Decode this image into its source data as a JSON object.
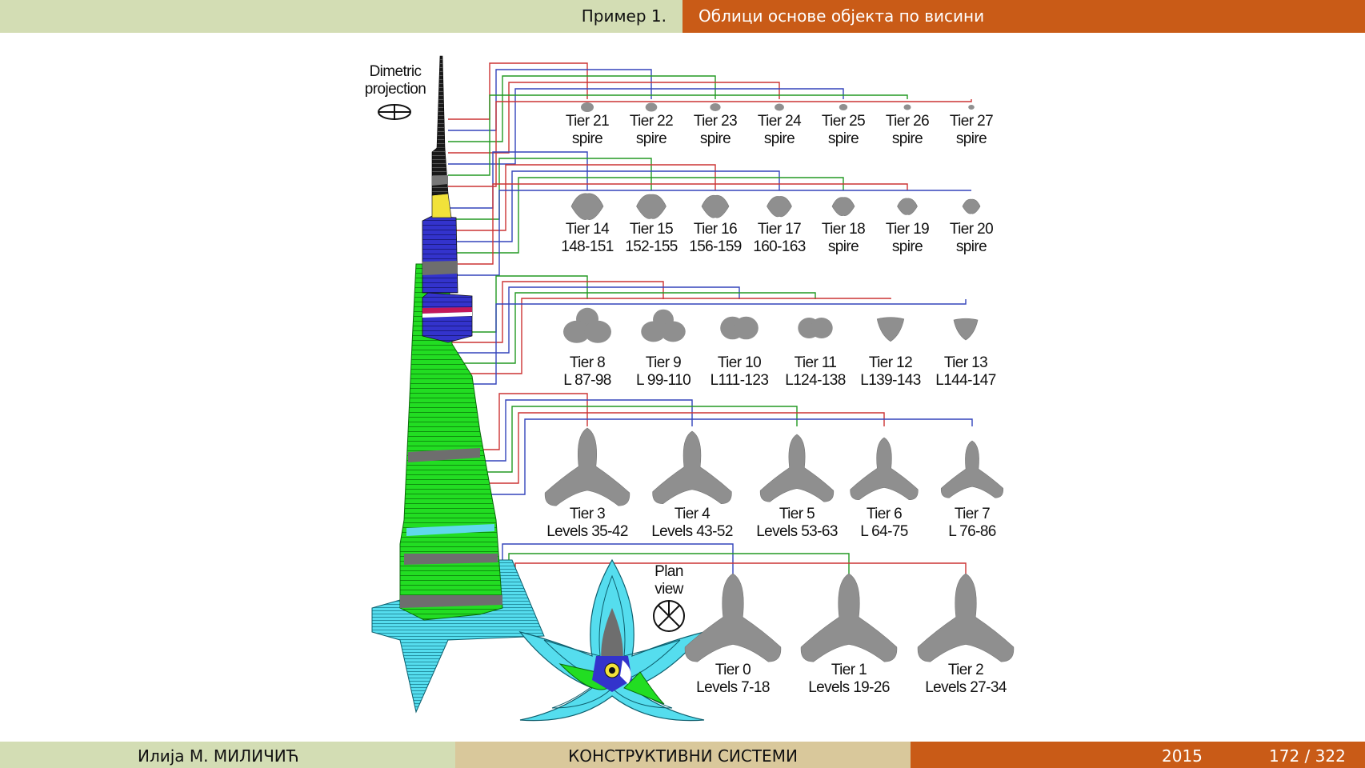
{
  "header": {
    "section": "Пример 1.",
    "title": "Облици основе објекта по висини"
  },
  "footer": {
    "author": "Илија М. МИЛИЧИЋ",
    "course": "КОНСТРУКТИВНИ СИСТЕМИ",
    "year": "2015",
    "page": "172 / 322"
  },
  "colors": {
    "header_left": "#d3ddb4",
    "header_right": "#c95b17",
    "footer_mid": "#d9c89b",
    "plan_gray": "#8f8f8f",
    "tier_green": "#22dd22",
    "tier_blue": "#3333cc",
    "podium_cyan": "#55ddee"
  },
  "diagram": {
    "dimetric_label_1": "Dimetric",
    "dimetric_label_2": "projection",
    "plan_label_1": "Plan",
    "plan_label_2": "view",
    "tiers": [
      {
        "name": "Tier 21",
        "levels": "spire"
      },
      {
        "name": "Tier 22",
        "levels": "spire"
      },
      {
        "name": "Tier 23",
        "levels": "spire"
      },
      {
        "name": "Tier 24",
        "levels": "spire"
      },
      {
        "name": "Tier 25",
        "levels": "spire"
      },
      {
        "name": "Tier 26",
        "levels": "spire"
      },
      {
        "name": "Tier 27",
        "levels": "spire"
      },
      {
        "name": "Tier 14",
        "levels": "148-151"
      },
      {
        "name": "Tier 15",
        "levels": "152-155"
      },
      {
        "name": "Tier 16",
        "levels": "156-159"
      },
      {
        "name": "Tier 17",
        "levels": "160-163"
      },
      {
        "name": "Tier 18",
        "levels": "spire"
      },
      {
        "name": "Tier 19",
        "levels": "spire"
      },
      {
        "name": "Tier 20",
        "levels": "spire"
      },
      {
        "name": "Tier 8",
        "levels": "L 87-98"
      },
      {
        "name": "Tier 9",
        "levels": "L 99-110"
      },
      {
        "name": "Tier 10",
        "levels": "L111-123"
      },
      {
        "name": "Tier 11",
        "levels": "L124-138"
      },
      {
        "name": "Tier 12",
        "levels": "L139-143"
      },
      {
        "name": "Tier 13",
        "levels": "L144-147"
      },
      {
        "name": "Tier 3",
        "levels": "Levels 35-42"
      },
      {
        "name": "Tier 4",
        "levels": "Levels 43-52"
      },
      {
        "name": "Tier 5",
        "levels": "Levels 53-63"
      },
      {
        "name": "Tier 6",
        "levels": "L 64-75"
      },
      {
        "name": "Tier 7",
        "levels": "L 76-86"
      },
      {
        "name": "Tier 0",
        "levels": "Levels 7-18"
      },
      {
        "name": "Tier 1",
        "levels": "Levels 19-26"
      },
      {
        "name": "Tier 2",
        "levels": "Levels 27-34"
      }
    ]
  }
}
